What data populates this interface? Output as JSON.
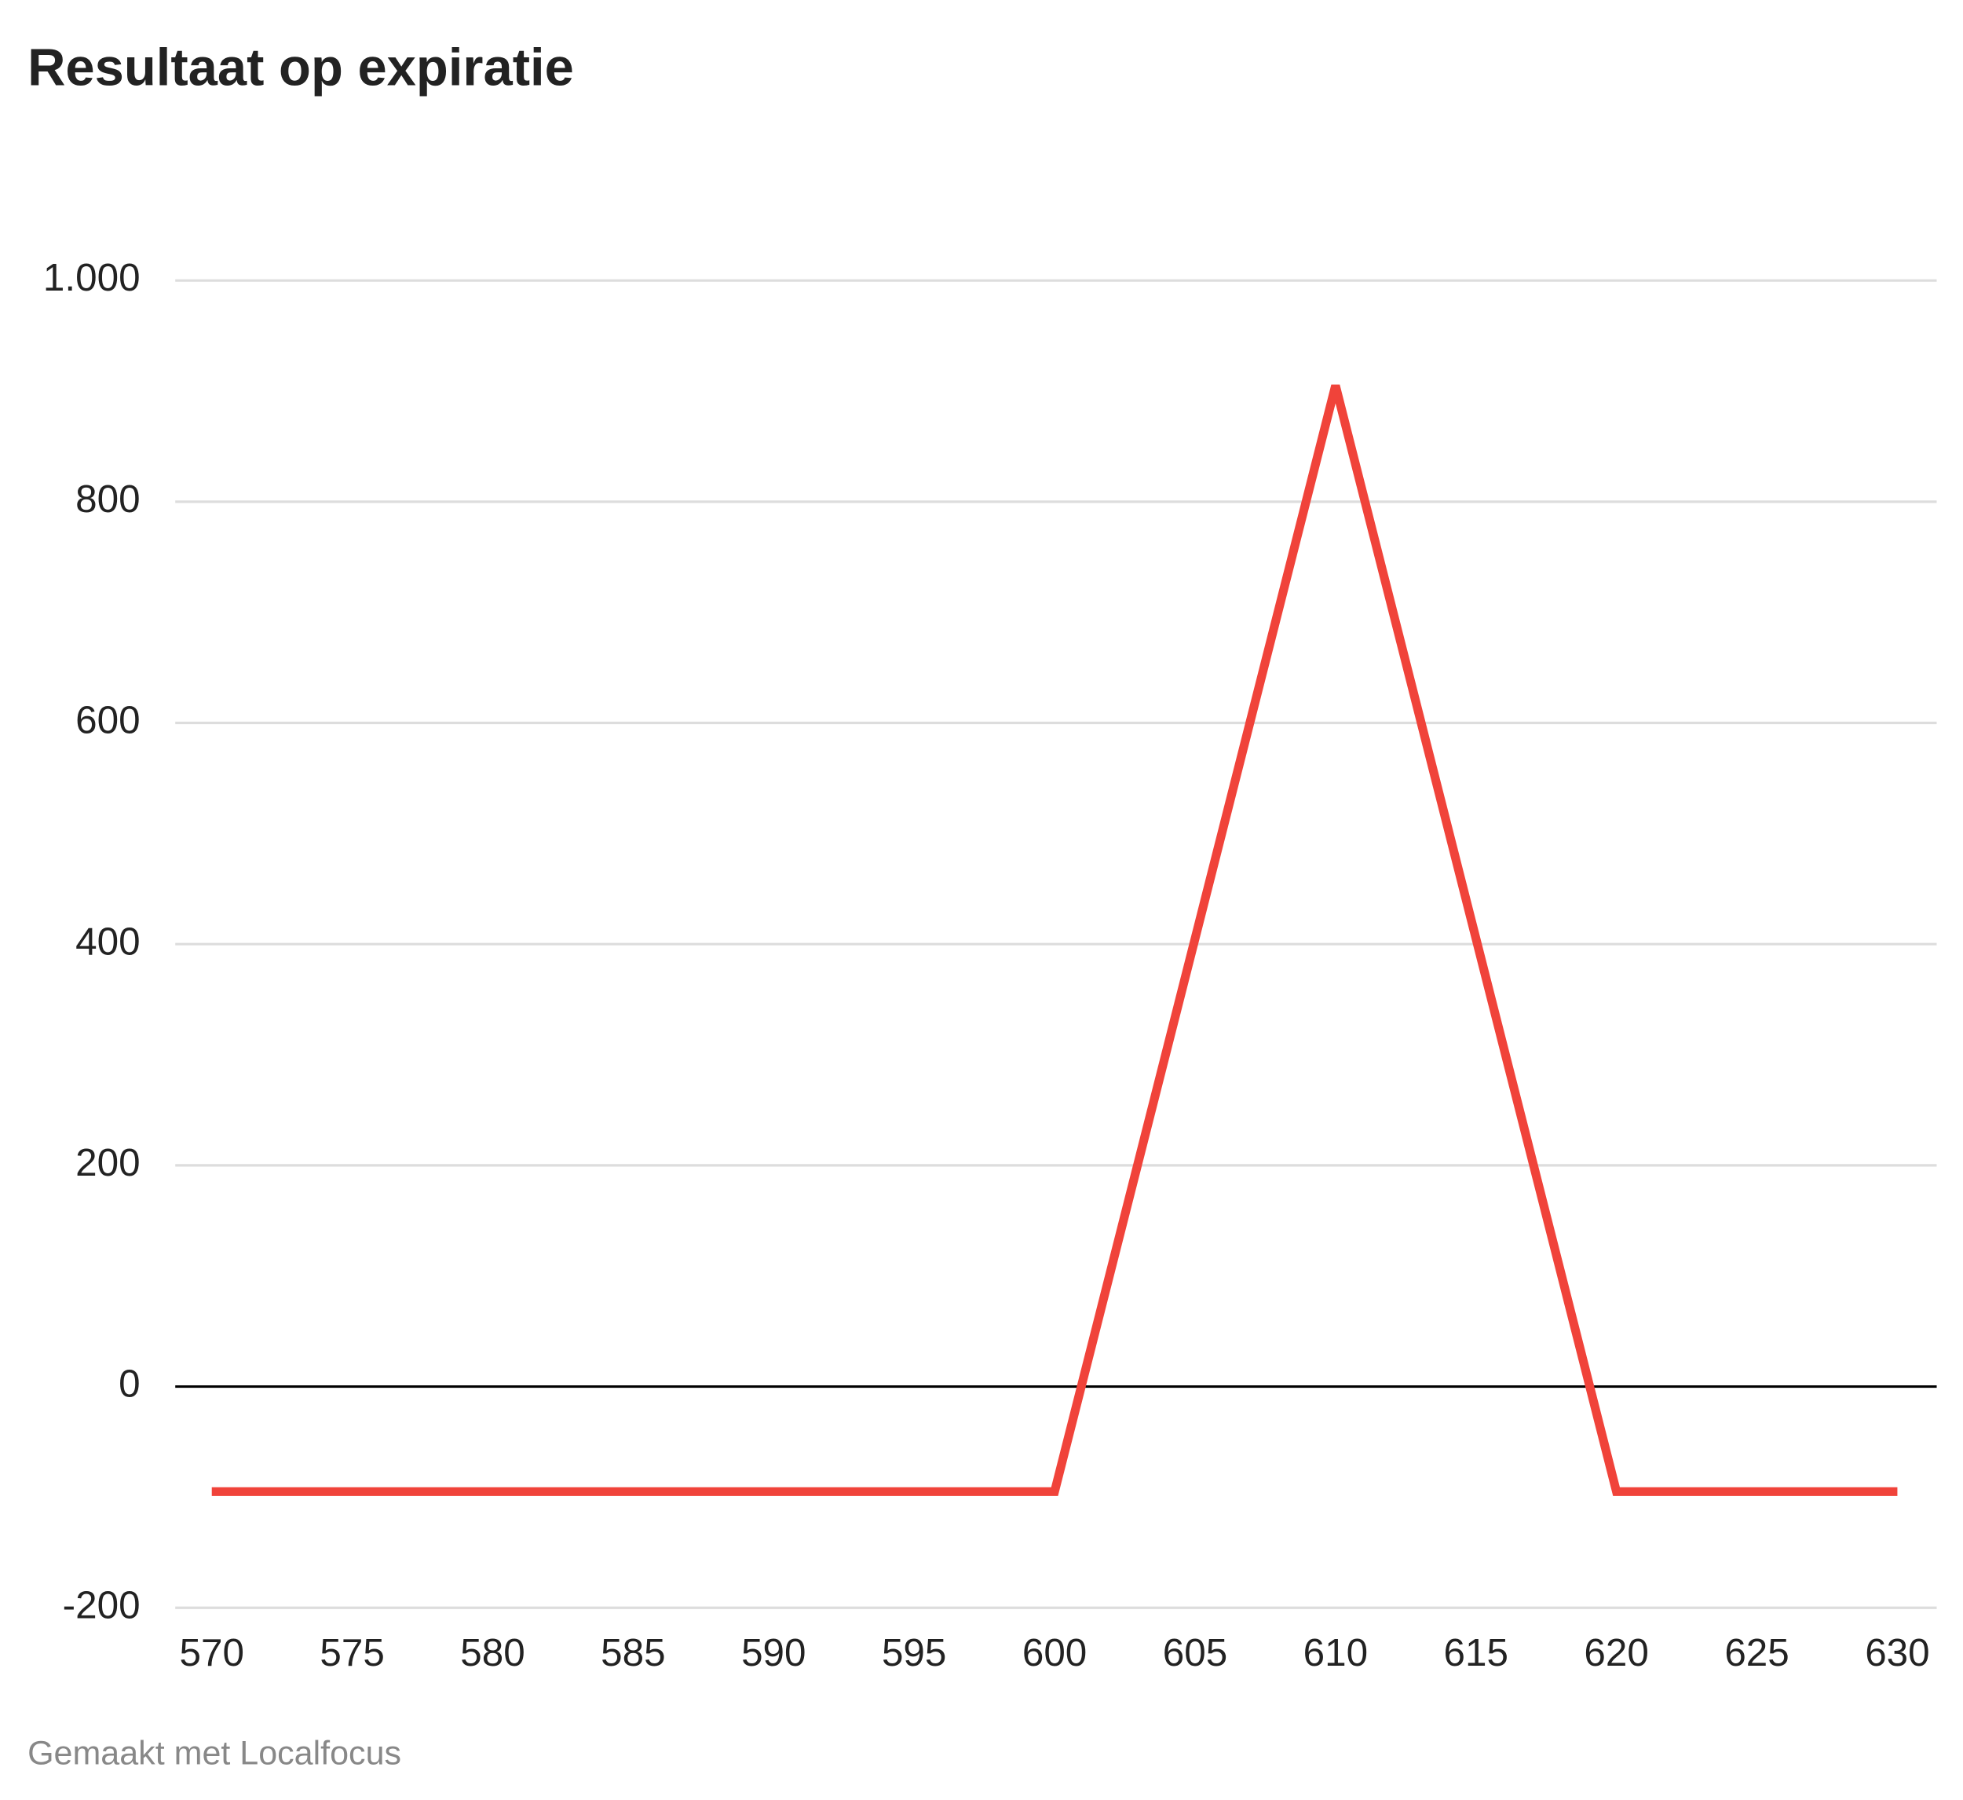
{
  "chart_data": {
    "type": "line",
    "title": "Resultaat op expiratie",
    "source": "Gemaakt met Localfocus",
    "x": [
      570,
      600,
      610,
      620,
      630
    ],
    "series": [
      {
        "color": "#f0433a",
        "values": [
          -95,
          -95,
          905,
          -95,
          -95
        ]
      }
    ],
    "xlim": [
      568.7,
      631.4
    ],
    "xticks": [
      570,
      575,
      580,
      585,
      590,
      595,
      600,
      605,
      610,
      615,
      620,
      625,
      630
    ],
    "ylim": [
      -200,
      1000
    ],
    "yticks": [
      -200,
      0,
      200,
      400,
      600,
      800,
      {
        "value": 1000,
        "label": "1.000"
      }
    ],
    "grid": true,
    "zero_line": true
  }
}
